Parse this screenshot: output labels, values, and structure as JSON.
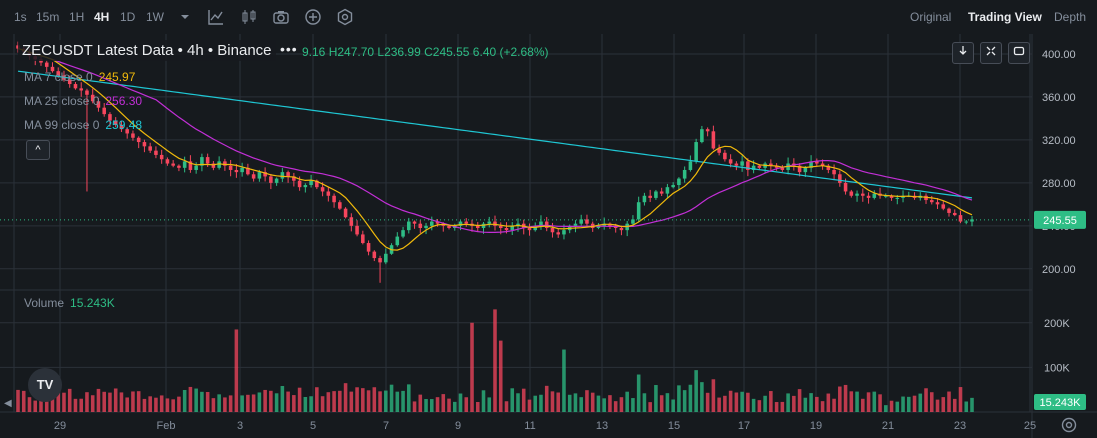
{
  "toolbar": {
    "timeframes": [
      "1s",
      "15m",
      "1H",
      "4H",
      "1D",
      "1W"
    ],
    "active_timeframe": "4H",
    "views": [
      "Original",
      "Trading View",
      "Depth"
    ],
    "active_view": "Trading View"
  },
  "legend": {
    "title": "ZECUSDT Latest Data • 4h • Binance",
    "more": "•••",
    "ohlc_text": "9.16  H247.70  L236.99  C245.55  6.40 (+2.68%)",
    "ma7_label": "MA 7 close 0",
    "ma7_value": "245.97",
    "ma25_label": "MA 25 close 0",
    "ma25_value": "256.30",
    "ma99_label": "MA 99 close 0",
    "ma99_value": "259.48",
    "collapse": "^",
    "volume_label": "Volume",
    "volume_value": "15.243K"
  },
  "logo_text": "TV",
  "colors": {
    "up": "#2ebd85",
    "down": "#f6465d",
    "ma7": "#f0b90b",
    "ma25": "#c22fd6",
    "ma99": "#1fc7d4",
    "grid": "#2b3139"
  },
  "chart_data": {
    "type": "candlestick",
    "symbol": "ZECUSDT",
    "interval": "4h",
    "price_axis": {
      "ticks": [
        "400.00",
        "360.00",
        "320.00",
        "280.00",
        "240.00",
        "200.00"
      ],
      "range": [
        184,
        413
      ]
    },
    "volume_axis": {
      "ticks": [
        "200K",
        "100K"
      ],
      "range": [
        0,
        260000
      ]
    },
    "x_ticks": [
      "29",
      "Feb",
      "3",
      "5",
      "7",
      "9",
      "11",
      "13",
      "15",
      "17",
      "19",
      "21",
      "23",
      "25"
    ],
    "last_price": "245.55",
    "last_volume": "15.243K",
    "close_series": [
      405,
      402,
      398,
      395,
      392,
      388,
      384,
      380,
      376,
      372,
      368,
      366,
      362,
      356,
      350,
      344,
      338,
      334,
      330,
      326,
      322,
      318,
      314,
      310,
      306,
      302,
      298,
      296,
      294,
      300,
      292,
      296,
      304,
      298,
      294,
      300,
      296,
      292,
      290,
      294,
      288,
      284,
      290,
      286,
      280,
      284,
      290,
      286,
      282,
      276,
      278,
      282,
      276,
      272,
      268,
      262,
      256,
      248,
      240,
      232,
      224,
      216,
      210,
      206,
      214,
      222,
      230,
      236,
      244,
      242,
      238,
      240,
      244,
      242,
      240,
      238,
      240,
      244,
      242,
      240,
      238,
      242,
      244,
      240,
      238,
      236,
      240,
      242,
      238,
      236,
      240,
      244,
      238,
      234,
      232,
      236,
      240,
      242,
      246,
      242,
      238,
      240,
      242,
      240,
      238,
      236,
      242,
      246,
      262,
      268,
      266,
      272,
      270,
      276,
      278,
      284,
      292,
      300,
      318,
      330,
      328,
      312,
      308,
      302,
      298,
      296,
      300,
      292,
      296,
      294,
      298,
      296,
      294,
      292,
      298,
      296,
      290,
      294,
      300,
      298,
      296,
      292,
      288,
      280,
      272,
      268,
      270,
      268,
      266,
      270,
      268,
      268,
      266,
      266,
      268,
      268,
      266,
      268,
      264,
      262,
      260,
      256,
      252,
      250,
      244,
      244,
      246
    ]
  }
}
